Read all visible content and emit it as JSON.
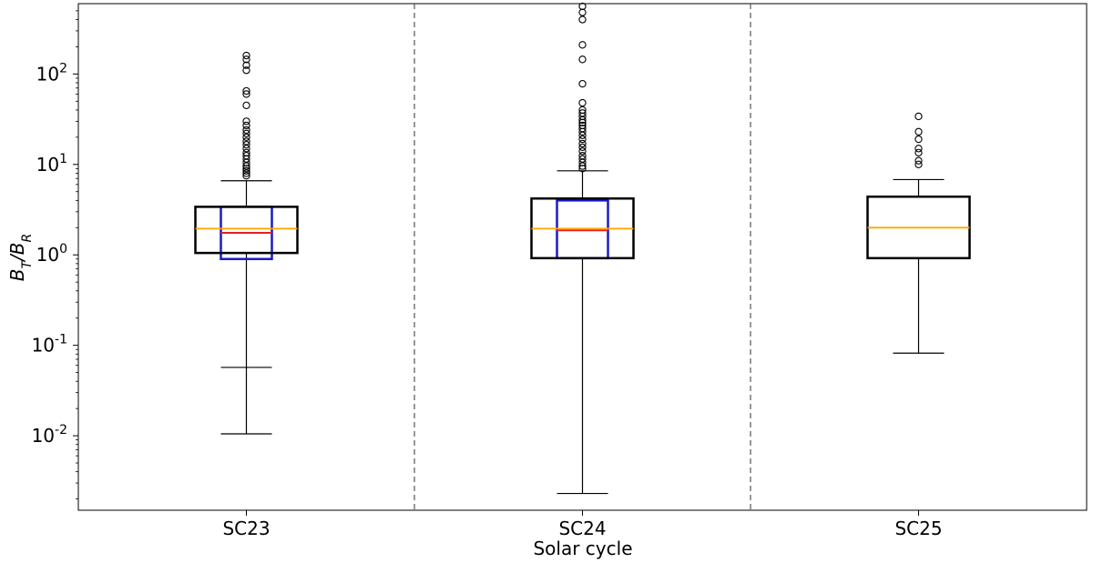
{
  "chart_data": {
    "type": "box",
    "scale": {
      "y": "log"
    },
    "ylim": [
      0.0015,
      600
    ],
    "ylabel": {
      "base": "B",
      "num_sub": "T",
      "den_sub": "R"
    },
    "xlabel": "Solar cycle",
    "categories": [
      "SC23",
      "SC24",
      "SC25"
    ],
    "y_ticks": [
      {
        "exp": "-2",
        "value": 0.01
      },
      {
        "exp": "-1",
        "value": 0.1
      },
      {
        "exp": "0",
        "value": 1
      },
      {
        "exp": "1",
        "value": 10
      },
      {
        "exp": "2",
        "value": 100
      }
    ],
    "separators": "dashed vertical lines between cycles",
    "boxes": [
      {
        "category": "SC23",
        "whisker_low": 0.0105,
        "q1": 1.05,
        "median": 1.95,
        "q3": 3.4,
        "whisker_high": 6.6,
        "inner_box": {
          "q1": 0.9,
          "median": 1.75,
          "q3": 3.4,
          "whisker_low": 0.057
        },
        "outliers": [
          7.5,
          8,
          8.5,
          9,
          9.6,
          10.5,
          11.5,
          12.5,
          13.5,
          15,
          16.5,
          18,
          20,
          22,
          24,
          27,
          30,
          45,
          60,
          65,
          110,
          125,
          145,
          160
        ]
      },
      {
        "category": "SC24",
        "whisker_low": 0.0023,
        "q1": 0.92,
        "median": 1.95,
        "q3": 4.2,
        "whisker_high": 8.5,
        "inner_box": {
          "q1": 0.92,
          "median": 1.87,
          "q3": 4.0
        },
        "outliers": [
          9,
          9.6,
          10.5,
          11.5,
          12.5,
          14,
          15.5,
          17,
          19,
          21,
          23,
          25,
          27,
          29,
          31,
          34,
          37,
          40,
          48,
          78,
          145,
          210,
          400,
          480,
          560
        ]
      },
      {
        "category": "SC25",
        "whisker_low": 0.082,
        "q1": 0.92,
        "median": 2.0,
        "q3": 4.4,
        "whisker_high": 6.8,
        "outliers": [
          10,
          11,
          13.5,
          15,
          19,
          23,
          34
        ]
      }
    ],
    "colors": {
      "outer_box": "#000000",
      "median": "#ffa500",
      "inner_box": "#1a1acc",
      "inner_median": "#e62020",
      "separator": "#555555"
    }
  }
}
